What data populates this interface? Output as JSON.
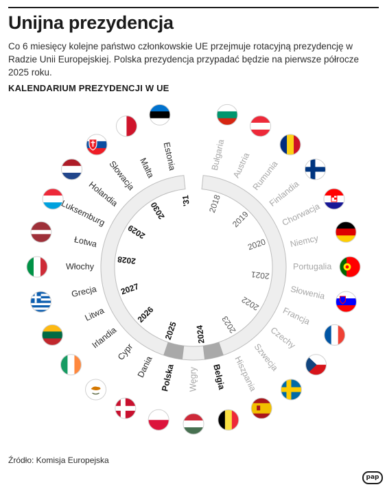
{
  "header": {
    "title": "Unijna prezydencja",
    "description": "Co 6 miesięcy kolejne państwo członkowskie UE przejmuje rotacyjną prezydencję w Radzie Unii Europejskiej. Polska prezydencja przypadać będzie na pierwsze półrocze 2025 roku.",
    "subtitle": "KALENDARIUM PREZYDENCJI W UE"
  },
  "colors": {
    "past": "#a6a6a6",
    "future": "#2a2a2a",
    "ring_fill": "#eeeeee",
    "ring_stroke": "#bdbdbd",
    "ring_highlight": "#a9a9a9"
  },
  "presidencies": [
    {
      "country": "Bułgaria",
      "flag": "bulgaria",
      "status": "past"
    },
    {
      "country": "Austria",
      "flag": "austria",
      "status": "past"
    },
    {
      "country": "Rumunia",
      "flag": "romania",
      "status": "past"
    },
    {
      "country": "Finlandia",
      "flag": "finland",
      "status": "past"
    },
    {
      "country": "Chorwacja",
      "flag": "croatia",
      "status": "past"
    },
    {
      "country": "Niemcy",
      "flag": "germany",
      "status": "past"
    },
    {
      "country": "Portugalia",
      "flag": "portugal",
      "status": "past"
    },
    {
      "country": "Słowenia",
      "flag": "slovenia",
      "status": "past"
    },
    {
      "country": "Francja",
      "flag": "france",
      "status": "past"
    },
    {
      "country": "Czechy",
      "flag": "czechia",
      "status": "past"
    },
    {
      "country": "Szwecja",
      "flag": "sweden",
      "status": "past"
    },
    {
      "country": "Hiszpania",
      "flag": "spain",
      "status": "past"
    },
    {
      "country": "Belgia",
      "flag": "belgium",
      "status": "highlight"
    },
    {
      "country": "Węgry",
      "flag": "hungary",
      "status": "past"
    },
    {
      "country": "Polska",
      "flag": "poland",
      "status": "highlight"
    },
    {
      "country": "Dania",
      "flag": "denmark",
      "status": "future"
    },
    {
      "country": "Cypr",
      "flag": "cyprus",
      "status": "future"
    },
    {
      "country": "Irlandia",
      "flag": "ireland",
      "status": "future"
    },
    {
      "country": "Litwa",
      "flag": "lithuania",
      "status": "future"
    },
    {
      "country": "Grecja",
      "flag": "greece",
      "status": "future"
    },
    {
      "country": "Włochy",
      "flag": "italy",
      "status": "future"
    },
    {
      "country": "Łotwa",
      "flag": "latvia",
      "status": "future"
    },
    {
      "country": "Luksemburg",
      "flag": "luxembourg",
      "status": "future"
    },
    {
      "country": "Holandia",
      "flag": "netherlands",
      "status": "future"
    },
    {
      "country": "Słowacja",
      "flag": "slovakia",
      "status": "future"
    },
    {
      "country": "Malta",
      "flag": "malta",
      "status": "future"
    },
    {
      "country": "Estonia",
      "flag": "estonia",
      "status": "future"
    }
  ],
  "years": [
    {
      "label": "2018",
      "status": "past"
    },
    {
      "label": "2019",
      "status": "past"
    },
    {
      "label": "2020",
      "status": "past"
    },
    {
      "label": "2021",
      "status": "past"
    },
    {
      "label": "2022",
      "status": "past"
    },
    {
      "label": "2023",
      "status": "past"
    },
    {
      "label": "2024",
      "status": "highlight"
    },
    {
      "label": "2025",
      "status": "highlight"
    },
    {
      "label": "2026",
      "status": "future"
    },
    {
      "label": "2027",
      "status": "future"
    },
    {
      "label": "2028",
      "status": "future"
    },
    {
      "label": "2029",
      "status": "future"
    },
    {
      "label": "2030",
      "status": "future"
    },
    {
      "label": "'31",
      "status": "future"
    }
  ],
  "footer": {
    "source": "Źródło: Komisja Europejska",
    "logo": "pap"
  }
}
